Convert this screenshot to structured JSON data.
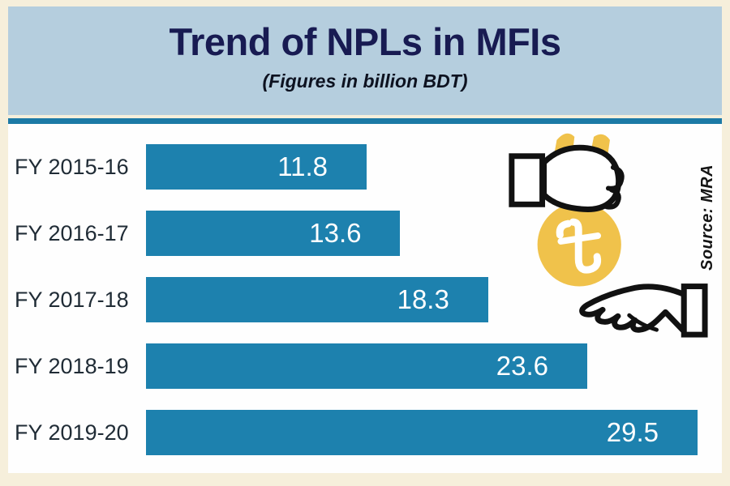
{
  "chart_data": {
    "type": "bar",
    "orientation": "horizontal",
    "title": "Trend of NPLs in MFIs",
    "subtitle": "(Figures in billion BDT)",
    "unit": "billion BDT",
    "categories": [
      "FY 2015-16",
      "FY 2016-17",
      "FY 2017-18",
      "FY 2018-19",
      "FY 2019-20"
    ],
    "values": [
      11.8,
      13.6,
      18.3,
      23.6,
      29.5
    ],
    "value_labels": [
      "11.8",
      "13.6",
      "18.3",
      "23.6",
      "29.5"
    ],
    "xlim": [
      0,
      29.5
    ],
    "grid": false,
    "legend": false,
    "bar_color": "#1d81ae",
    "value_label_color": "#ffffff",
    "source": "Source: MRA"
  },
  "colors": {
    "background": "#f6efdb",
    "header_band": "#b5cede",
    "title_text": "#181b52",
    "divider": "#1c7aa6",
    "bar": "#1d81ae",
    "bar_value_text": "#ffffff",
    "category_text": "#202c36",
    "chart_background": "#fefefe",
    "money_bag": "#f0c24b",
    "line_art": "#111111"
  },
  "icons": {
    "giving_hand": "giving-hand-icon",
    "money_bag": "money-bag-icon",
    "taka_sign": "taka-sign-icon",
    "receiving_hand": "receiving-hand-icon"
  }
}
